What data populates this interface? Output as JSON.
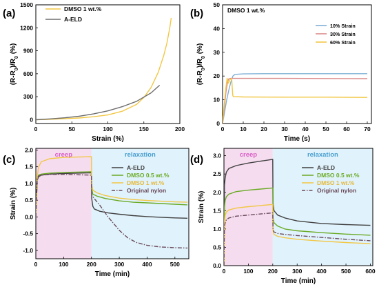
{
  "chart_data": [
    {
      "panel_label": "(a)",
      "type": "line",
      "title": "",
      "xlabel": "Strain (%)",
      "ylabel": "(R-R₀)/R₀ (%)",
      "xlim": [
        0,
        200
      ],
      "ylim": [
        -50,
        1500
      ],
      "xticks": [
        "0",
        "50",
        "100",
        "150",
        "200"
      ],
      "yticks": [
        "0",
        "300",
        "600",
        "900",
        "1200",
        "1500"
      ],
      "legend": "top-left",
      "series": [
        {
          "name": "DMSO 1 wt.%",
          "color": "#f2c744",
          "x": [
            0,
            20,
            40,
            60,
            80,
            100,
            120,
            140,
            150,
            160,
            170,
            178,
            182,
            186,
            188
          ],
          "y": [
            0,
            5,
            12,
            22,
            38,
            62,
            110,
            200,
            290,
            420,
            620,
            850,
            1000,
            1200,
            1330
          ]
        },
        {
          "name": "A-ELD",
          "color": "#6e6e6e",
          "x": [
            0,
            20,
            40,
            60,
            80,
            100,
            120,
            140,
            160,
            172
          ],
          "y": [
            0,
            10,
            25,
            45,
            75,
            115,
            170,
            240,
            350,
            450
          ]
        }
      ]
    },
    {
      "panel_label": "(b)",
      "type": "line",
      "title": "DMSO 1 wt.%",
      "xlabel": "Time (s)",
      "ylabel": "(R-R₀)/R₀ (%)",
      "xlim": [
        0,
        72
      ],
      "ylim": [
        0,
        50
      ],
      "xticks": [
        "0",
        "10",
        "20",
        "30",
        "40",
        "50",
        "60",
        "70"
      ],
      "yticks": [
        "0",
        "10",
        "20",
        "30",
        "40",
        "50"
      ],
      "legend": "top-right",
      "series": [
        {
          "name": "10% Strain",
          "color": "#7fb0d6",
          "x": [
            0,
            1,
            2,
            3,
            4,
            5,
            6,
            10,
            20,
            40,
            70
          ],
          "y": [
            0,
            5,
            10,
            14,
            17.5,
            20,
            20.7,
            20.9,
            21,
            21,
            21
          ]
        },
        {
          "name": "30% Strain",
          "color": "#dc8a8a",
          "x": [
            0,
            0.8,
            1.6,
            2.4,
            3,
            4,
            10,
            30,
            70
          ],
          "y": [
            0,
            6,
            13,
            17.5,
            18.8,
            19,
            19,
            19,
            18.9
          ]
        },
        {
          "name": "60% Strain",
          "color": "#f2c744",
          "x": [
            0,
            0.8,
            1.6,
            2.2,
            2.8,
            3.6,
            4.4,
            4.9,
            5.2,
            10,
            30,
            50,
            70
          ],
          "y": [
            0,
            8,
            15,
            19,
            17,
            18.5,
            19,
            12,
            11.3,
            11.2,
            11.1,
            11.1,
            11
          ]
        }
      ]
    },
    {
      "panel_label": "(c)",
      "type": "line",
      "title": "",
      "xlabel": "Time (min)",
      "ylabel": "Strain (%)",
      "xlim": [
        0,
        550
      ],
      "ylim": [
        -1.25,
        2.05
      ],
      "xticks": [
        "0",
        "100",
        "200",
        "300",
        "400",
        "500"
      ],
      "yticks": [
        "-1.0",
        "-0.5",
        "0.0",
        "0.5",
        "1.0",
        "1.5",
        "2.0"
      ],
      "legend": "right",
      "annotations": [
        {
          "text": "creep",
          "x_range": [
            0,
            200
          ],
          "color": "#f5dcef"
        },
        {
          "text": "relaxation",
          "x_range": [
            200,
            550
          ],
          "color": "#e0f2fb"
        }
      ],
      "series": [
        {
          "name": "A-ELD",
          "color": "#404040",
          "x": [
            0,
            5,
            10,
            20,
            50,
            100,
            150,
            200,
            201,
            205,
            210,
            230,
            260,
            300,
            350,
            400,
            450,
            500,
            545
          ],
          "y": [
            0,
            1.1,
            1.2,
            1.25,
            1.28,
            1.3,
            1.31,
            1.32,
            0.55,
            0.32,
            0.24,
            0.17,
            0.12,
            0.08,
            0.04,
            0.01,
            -0.01,
            -0.03,
            -0.04
          ]
        },
        {
          "name": "DMSO 0.5 wt.%",
          "color": "#6aaa25",
          "x": [
            0,
            5,
            10,
            20,
            50,
            100,
            150,
            200,
            201,
            205,
            220,
            250,
            300,
            350,
            400,
            450,
            500,
            545
          ],
          "y": [
            0,
            1.15,
            1.25,
            1.28,
            1.31,
            1.33,
            1.34,
            1.35,
            0.85,
            0.68,
            0.62,
            0.55,
            0.48,
            0.44,
            0.42,
            0.4,
            0.38,
            0.36
          ]
        },
        {
          "name": "DMSO 1 wt.%",
          "color": "#f2c744",
          "x": [
            0,
            5,
            10,
            20,
            50,
            100,
            150,
            200,
            201,
            205,
            220,
            250,
            300,
            350,
            400,
            450,
            500,
            545
          ],
          "y": [
            0,
            1.2,
            1.5,
            1.65,
            1.74,
            1.78,
            1.79,
            1.8,
            0.95,
            0.8,
            0.72,
            0.64,
            0.56,
            0.52,
            0.49,
            0.47,
            0.45,
            0.44
          ]
        },
        {
          "name": "Original nylon",
          "color": "#6a4a5a",
          "dashed": true,
          "x": [
            0,
            5,
            10,
            20,
            50,
            100,
            150,
            200,
            201,
            210,
            230,
            260,
            300,
            330,
            360,
            400,
            450,
            500,
            545
          ],
          "y": [
            0,
            1.15,
            1.22,
            1.25,
            1.27,
            1.27,
            1.26,
            1.25,
            0.65,
            0.55,
            0.35,
            0.0,
            -0.4,
            -0.62,
            -0.76,
            -0.85,
            -0.9,
            -0.92,
            -0.93
          ]
        }
      ]
    },
    {
      "panel_label": "(d)",
      "type": "line",
      "title": "",
      "xlabel": "Time (min)",
      "ylabel": "Strain (%)",
      "xlim": [
        0,
        610
      ],
      "ylim": [
        0,
        3.2
      ],
      "xticks": [
        "0",
        "100",
        "200",
        "300",
        "400",
        "500",
        "600"
      ],
      "yticks": [
        "0.0",
        "0.5",
        "1.0",
        "1.5",
        "2.0",
        "2.5",
        "3.0"
      ],
      "legend": "right",
      "annotations": [
        {
          "text": "creep",
          "x_range": [
            0,
            200
          ],
          "color": "#f5dcef"
        },
        {
          "text": "relaxation",
          "x_range": [
            200,
            610
          ],
          "color": "#e0f2fb"
        }
      ],
      "series": [
        {
          "name": "A-ELD",
          "color": "#404040",
          "x": [
            0,
            2,
            5,
            10,
            20,
            50,
            100,
            150,
            200,
            201,
            205,
            220,
            250,
            300,
            400,
            500,
            600
          ],
          "y": [
            0,
            2.2,
            2.4,
            2.55,
            2.65,
            2.73,
            2.8,
            2.85,
            2.9,
            1.7,
            1.5,
            1.38,
            1.3,
            1.22,
            1.15,
            1.12,
            1.1
          ]
        },
        {
          "name": "DMSO 0.5 wt.%",
          "color": "#6aaa25",
          "x": [
            0,
            2,
            5,
            10,
            20,
            50,
            100,
            150,
            200,
            201,
            205,
            220,
            250,
            300,
            400,
            500,
            600
          ],
          "y": [
            0,
            1.6,
            1.78,
            1.88,
            1.95,
            2.02,
            2.06,
            2.09,
            2.12,
            1.3,
            1.17,
            1.08,
            1.0,
            0.95,
            0.9,
            0.86,
            0.83
          ]
        },
        {
          "name": "DMSO 1 wt.%",
          "color": "#f2c744",
          "x": [
            0,
            2,
            5,
            10,
            20,
            50,
            100,
            150,
            200,
            201,
            205,
            220,
            250,
            300,
            400,
            500,
            600
          ],
          "y": [
            0,
            1.2,
            1.38,
            1.46,
            1.52,
            1.57,
            1.61,
            1.64,
            1.67,
            0.95,
            0.85,
            0.8,
            0.76,
            0.72,
            0.67,
            0.63,
            0.6
          ]
        },
        {
          "name": "Original nylon",
          "color": "#6a4a5a",
          "dashed": true,
          "x": [
            0,
            2,
            5,
            10,
            20,
            50,
            100,
            150,
            200,
            201,
            205,
            220,
            250,
            300,
            400,
            500,
            600
          ],
          "y": [
            0,
            1.05,
            1.18,
            1.25,
            1.3,
            1.35,
            1.38,
            1.41,
            1.44,
            0.98,
            0.92,
            0.88,
            0.85,
            0.82,
            0.77,
            0.72,
            0.68
          ]
        }
      ]
    }
  ]
}
